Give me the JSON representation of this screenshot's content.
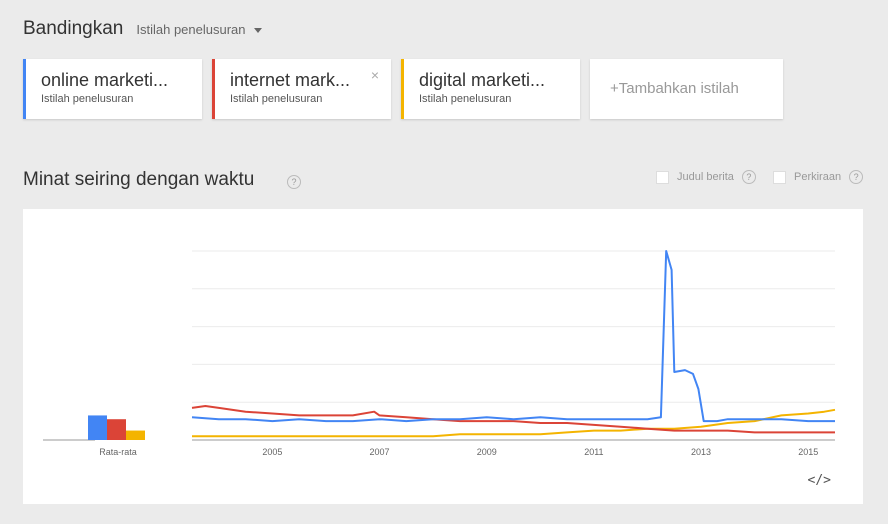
{
  "compare": {
    "title": "Bandingkan",
    "search_type": "Istilah penelusuran"
  },
  "terms": [
    {
      "name": "online marketi...",
      "type": "Istilah penelusuran",
      "color": "#4285f4"
    },
    {
      "name": "internet mark...",
      "type": "Istilah penelusuran",
      "color": "#db4437",
      "close": "×"
    },
    {
      "name": "digital marketi...",
      "type": "Istilah penelusuran",
      "color": "#f4b400"
    }
  ],
  "add_term": "+Tambahkan istilah",
  "interest": {
    "title": "Minat seiring dengan waktu",
    "help": "?",
    "options": [
      {
        "label": "Judul berita",
        "help": "?"
      },
      {
        "label": "Perkiraan",
        "help": "?"
      }
    ]
  },
  "embed_label": "</>",
  "chart_data": {
    "type": "line",
    "x_tick_labels": [
      "2005",
      "2007",
      "2009",
      "2011",
      "2013",
      "2015"
    ],
    "x_range": [
      2004.0,
      2016.0
    ],
    "y_range": [
      0,
      100
    ],
    "grid": true,
    "average_label": "Rata-rata",
    "averages": [
      {
        "name": "online marketi...",
        "value": 13,
        "color": "#4285f4"
      },
      {
        "name": "internet mark...",
        "value": 11,
        "color": "#db4437"
      },
      {
        "name": "digital marketi...",
        "value": 5,
        "color": "#f4b400"
      }
    ],
    "series": [
      {
        "name": "online marketi...",
        "color": "#4285f4",
        "points": [
          [
            2004.0,
            12
          ],
          [
            2004.5,
            11
          ],
          [
            2005.0,
            11
          ],
          [
            2005.5,
            10
          ],
          [
            2006.0,
            11
          ],
          [
            2006.5,
            10
          ],
          [
            2007.0,
            10
          ],
          [
            2007.5,
            11
          ],
          [
            2008.0,
            10
          ],
          [
            2008.5,
            11
          ],
          [
            2009.0,
            11
          ],
          [
            2009.5,
            12
          ],
          [
            2010.0,
            11
          ],
          [
            2010.5,
            12
          ],
          [
            2011.0,
            11
          ],
          [
            2011.5,
            11
          ],
          [
            2012.0,
            11
          ],
          [
            2012.5,
            11
          ],
          [
            2012.75,
            12
          ],
          [
            2012.85,
            100
          ],
          [
            2012.95,
            90
          ],
          [
            2013.0,
            36
          ],
          [
            2013.2,
            37
          ],
          [
            2013.35,
            35
          ],
          [
            2013.45,
            27
          ],
          [
            2013.55,
            10
          ],
          [
            2013.8,
            10
          ],
          [
            2014.0,
            11
          ],
          [
            2014.5,
            11
          ],
          [
            2015.0,
            11
          ],
          [
            2015.5,
            10
          ],
          [
            2016.0,
            10
          ]
        ]
      },
      {
        "name": "internet mark...",
        "color": "#db4437",
        "points": [
          [
            2004.0,
            17
          ],
          [
            2004.25,
            18
          ],
          [
            2004.5,
            17
          ],
          [
            2005.0,
            15
          ],
          [
            2005.5,
            14
          ],
          [
            2006.0,
            13
          ],
          [
            2006.5,
            13
          ],
          [
            2007.0,
            13
          ],
          [
            2007.4,
            15
          ],
          [
            2007.5,
            13
          ],
          [
            2008.0,
            12
          ],
          [
            2008.5,
            11
          ],
          [
            2009.0,
            10
          ],
          [
            2009.5,
            10
          ],
          [
            2010.0,
            10
          ],
          [
            2010.5,
            9
          ],
          [
            2011.0,
            9
          ],
          [
            2011.5,
            8
          ],
          [
            2012.0,
            7
          ],
          [
            2012.5,
            6
          ],
          [
            2013.0,
            5
          ],
          [
            2013.5,
            5
          ],
          [
            2014.0,
            5
          ],
          [
            2014.5,
            4
          ],
          [
            2015.0,
            4
          ],
          [
            2015.5,
            4
          ],
          [
            2016.0,
            4
          ]
        ]
      },
      {
        "name": "digital marketi...",
        "color": "#f4b400",
        "points": [
          [
            2004.0,
            2
          ],
          [
            2004.5,
            2
          ],
          [
            2005.0,
            2
          ],
          [
            2005.5,
            2
          ],
          [
            2006.0,
            2
          ],
          [
            2006.5,
            2
          ],
          [
            2007.0,
            2
          ],
          [
            2007.5,
            2
          ],
          [
            2008.0,
            2
          ],
          [
            2008.5,
            2
          ],
          [
            2009.0,
            3
          ],
          [
            2009.5,
            3
          ],
          [
            2010.0,
            3
          ],
          [
            2010.5,
            3
          ],
          [
            2011.0,
            4
          ],
          [
            2011.5,
            5
          ],
          [
            2012.0,
            5
          ],
          [
            2012.5,
            6
          ],
          [
            2013.0,
            6
          ],
          [
            2013.5,
            7
          ],
          [
            2014.0,
            9
          ],
          [
            2014.5,
            10
          ],
          [
            2015.0,
            13
          ],
          [
            2015.5,
            14
          ],
          [
            2015.8,
            15
          ],
          [
            2016.0,
            16
          ]
        ]
      }
    ]
  }
}
